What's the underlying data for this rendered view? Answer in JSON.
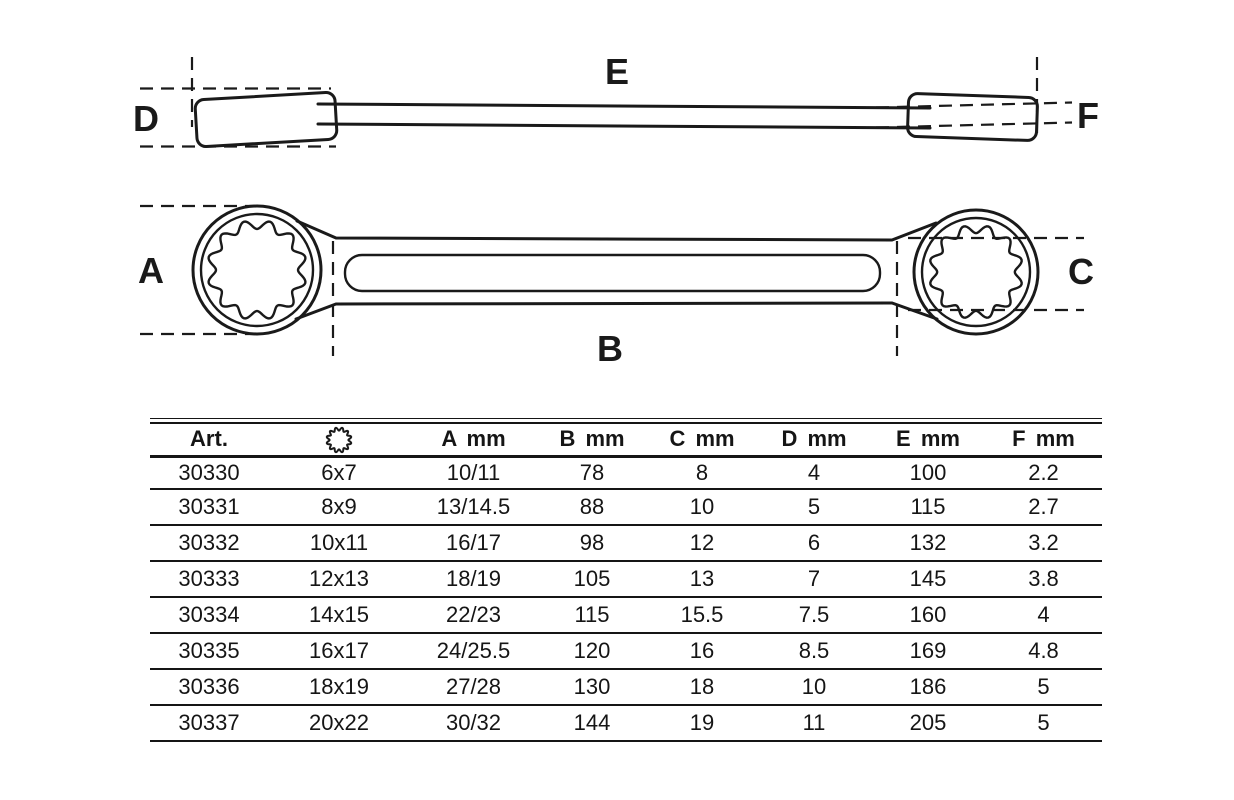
{
  "drawing": {
    "labels": {
      "A": "A",
      "B": "B",
      "C": "C",
      "D": "D",
      "E": "E",
      "F": "F"
    }
  },
  "table": {
    "columns": [
      {
        "label": "Art."
      },
      {
        "label": "",
        "icon": "12-point-profile"
      },
      {
        "label": "A mm"
      },
      {
        "label": "B mm"
      },
      {
        "label": "C mm"
      },
      {
        "label": "D mm"
      },
      {
        "label": "E mm"
      },
      {
        "label": "F mm"
      }
    ],
    "rows": [
      [
        "30330",
        "6x7",
        "10/11",
        "78",
        "8",
        "4",
        "100",
        "2.2"
      ],
      [
        "30331",
        "8x9",
        "13/14.5",
        "88",
        "10",
        "5",
        "115",
        "2.7"
      ],
      [
        "30332",
        "10x11",
        "16/17",
        "98",
        "12",
        "6",
        "132",
        "3.2"
      ],
      [
        "30333",
        "12x13",
        "18/19",
        "105",
        "13",
        "7",
        "145",
        "3.8"
      ],
      [
        "30334",
        "14x15",
        "22/23",
        "115",
        "15.5",
        "7.5",
        "160",
        "4"
      ],
      [
        "30335",
        "16x17",
        "24/25.5",
        "120",
        "16",
        "8.5",
        "169",
        "4.8"
      ],
      [
        "30336",
        "18x19",
        "27/28",
        "130",
        "18",
        "10",
        "186",
        "5"
      ],
      [
        "30337",
        "20x22",
        "30/32",
        "144",
        "19",
        "11",
        "205",
        "5"
      ]
    ]
  }
}
